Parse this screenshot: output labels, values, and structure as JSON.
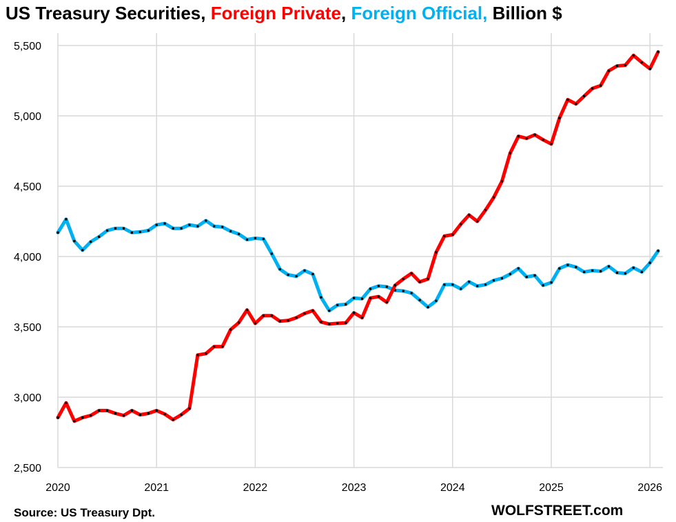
{
  "title": {
    "part1": "US Treasury Securities, ",
    "part2": "Foreign Private",
    "part3": ", ",
    "part4": "Foreign Official,",
    "part5": " Billion $"
  },
  "colors": {
    "private": "#ff0000",
    "official": "#00b0f0",
    "grid": "#d9d9d9",
    "marker": "#000000"
  },
  "source": "Source: US Treasury  Dpt.",
  "brand": "WOLFSTREET.com",
  "chart_data": {
    "type": "line",
    "title": "US Treasury Securities, Foreign Private, Foreign Official, Billion $",
    "xlabel": "",
    "ylabel": "",
    "x_start": 2020.0,
    "x_step_months": 1,
    "xlim": [
      2020,
      2026.1
    ],
    "ylim": [
      2500,
      5600
    ],
    "x_ticks": [
      "2020",
      "2021",
      "2022",
      "2023",
      "2024",
      "2025",
      "2026"
    ],
    "y_ticks": [
      "2,500",
      "3,000",
      "3,500",
      "4,000",
      "4,500",
      "5,000",
      "5,500"
    ],
    "grid": true,
    "series": [
      {
        "name": "Foreign Private",
        "color": "#ff0000",
        "values": [
          2855,
          2960,
          2830,
          2855,
          2870,
          2905,
          2905,
          2885,
          2870,
          2905,
          2875,
          2885,
          2905,
          2880,
          2840,
          2875,
          2920,
          3300,
          3310,
          3360,
          3360,
          3480,
          3530,
          3620,
          3525,
          3580,
          3580,
          3540,
          3545,
          3565,
          3595,
          3615,
          3535,
          3520,
          3525,
          3528,
          3600,
          3565,
          3705,
          3715,
          3675,
          3795,
          3840,
          3880,
          3820,
          3840,
          4030,
          4145,
          4155,
          4230,
          4295,
          4250,
          4330,
          4420,
          4535,
          4735,
          4855,
          4840,
          4865,
          4830,
          4800,
          4985,
          5115,
          5085,
          5140,
          5195,
          5215,
          5320,
          5355,
          5360,
          5430,
          5380,
          5335,
          5455
        ]
      },
      {
        "name": "Foreign Official",
        "color": "#00b0f0",
        "values": [
          4170,
          4265,
          4110,
          4045,
          4105,
          4140,
          4185,
          4200,
          4200,
          4170,
          4175,
          4185,
          4225,
          4235,
          4200,
          4200,
          4225,
          4215,
          4255,
          4215,
          4210,
          4180,
          4160,
          4120,
          4130,
          4125,
          4020,
          3910,
          3870,
          3860,
          3900,
          3875,
          3710,
          3615,
          3655,
          3660,
          3705,
          3700,
          3770,
          3790,
          3785,
          3760,
          3755,
          3740,
          3690,
          3640,
          3685,
          3800,
          3800,
          3770,
          3820,
          3790,
          3800,
          3830,
          3845,
          3875,
          3915,
          3855,
          3865,
          3795,
          3815,
          3915,
          3940,
          3925,
          3890,
          3900,
          3895,
          3930,
          3885,
          3880,
          3920,
          3890,
          3955,
          4040
        ]
      }
    ]
  }
}
